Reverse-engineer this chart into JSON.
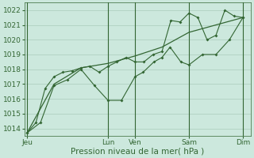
{
  "bg_color": "#cce8dd",
  "grid_color": "#aaccbb",
  "line_color": "#336633",
  "marker_color": "#336633",
  "xlabel": "Pression niveau de la mer( hPa )",
  "xlabel_fontsize": 7.5,
  "ylim": [
    1013.5,
    1022.5
  ],
  "yticks": [
    1014,
    1015,
    1016,
    1017,
    1018,
    1019,
    1020,
    1021,
    1022
  ],
  "tick_fontsize": 6.5,
  "day_labels": [
    "Jeu",
    "",
    "",
    "Lun",
    "Ven",
    "",
    "Sam",
    "",
    "Dim"
  ],
  "day_positions": [
    0,
    1,
    2,
    3,
    4,
    5,
    6,
    7,
    8
  ],
  "day_show": [
    true,
    false,
    false,
    true,
    true,
    false,
    true,
    false,
    true
  ],
  "vline_x": [
    0,
    3,
    4,
    6,
    8
  ],
  "series1_x": [
    0,
    0.33,
    0.67,
    1.0,
    1.33,
    1.67,
    2.0,
    2.33,
    2.67,
    3.0,
    3.33,
    3.67,
    4.0,
    4.33,
    4.67,
    5.0,
    5.33,
    5.67,
    6.0,
    6.33,
    6.67,
    7.0,
    7.33,
    7.67,
    8.0
  ],
  "series1_y": [
    1013.7,
    1014.4,
    1016.7,
    1017.5,
    1017.8,
    1017.9,
    1018.1,
    1018.2,
    1017.8,
    1018.2,
    1018.5,
    1018.8,
    1018.5,
    1018.5,
    1019.0,
    1019.2,
    1021.3,
    1021.2,
    1021.8,
    1021.5,
    1020.0,
    1020.3,
    1022.0,
    1021.6,
    1021.5
  ],
  "series2_x": [
    0,
    0.5,
    1.0,
    1.5,
    2.0,
    2.5,
    3.0,
    3.5,
    4.0,
    4.3,
    4.7,
    5.0,
    5.3,
    5.7,
    6.0,
    6.5,
    7.0,
    7.5,
    8.0
  ],
  "series2_y": [
    1013.7,
    1014.4,
    1016.9,
    1017.3,
    1018.0,
    1016.9,
    1015.9,
    1015.9,
    1017.5,
    1017.8,
    1018.5,
    1018.8,
    1019.5,
    1018.5,
    1018.3,
    1019.0,
    1019.0,
    1020.0,
    1021.5
  ],
  "series3_x": [
    0,
    1.0,
    2.0,
    3.0,
    4.0,
    5.0,
    6.0,
    7.0,
    8.0
  ],
  "series3_y": [
    1013.7,
    1017.0,
    1018.1,
    1018.4,
    1018.9,
    1019.5,
    1020.5,
    1021.0,
    1021.5
  ]
}
